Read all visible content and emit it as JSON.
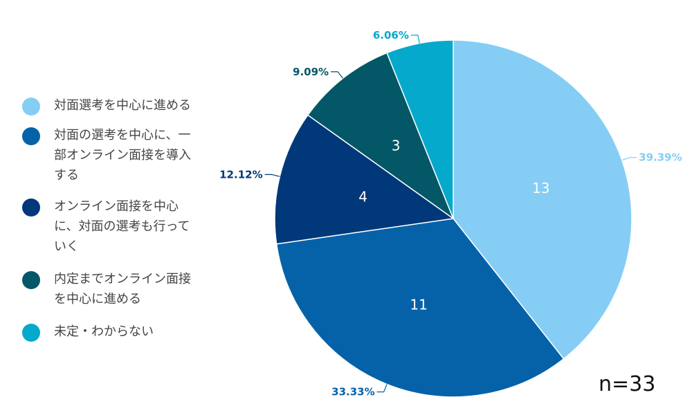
{
  "chart_data": {
    "type": "pie",
    "categories": [
      "対面選考を中心に進める",
      "対面の選考を中心に、一部オンライン面接を導入する",
      "オンライン面接を中心に、対面の選考も行っていく",
      "内定までオンライン面接を中心に進める",
      "未定・わからない"
    ],
    "values": [
      13,
      11,
      4,
      3,
      2
    ],
    "value_labels": [
      "13",
      "11",
      "4",
      "3",
      ""
    ],
    "percent_labels": [
      "39.39%",
      "33.33%",
      "12.12%",
      "9.09%",
      "6.06%"
    ],
    "colors": [
      "#85CDF5",
      "#0562A8",
      "#00387A",
      "#035766",
      "#05A9CC"
    ],
    "label_colors": [
      "#85CDF5",
      "#0562A8",
      "#00387A",
      "#035766",
      "#05A9CC"
    ],
    "legend_position": "left",
    "sample_size_label": "n=33"
  }
}
